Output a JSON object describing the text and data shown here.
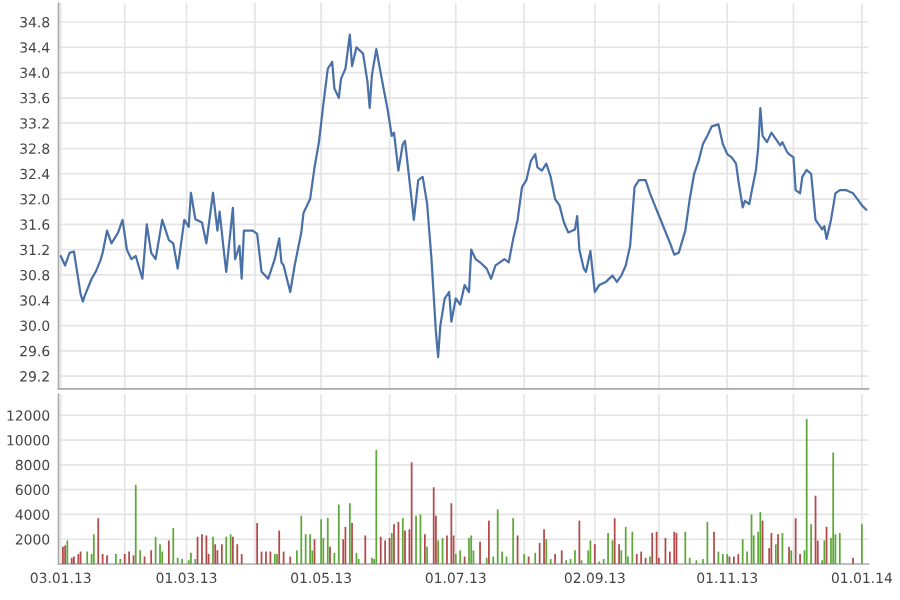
{
  "chart_data": [
    {
      "type": "line",
      "grid": true,
      "tick_labels": "y",
      "marker": "none",
      "line_style": "solid",
      "xlim": [
        "2013-01-02",
        "2014-01-04"
      ],
      "ylim": [
        29.0,
        35.1
      ],
      "yticks": [
        29.2,
        29.6,
        {
          "value": 30,
          "label": "30.0"
        },
        30.4,
        30.8,
        31.2,
        31.6,
        {
          "value": 32,
          "label": "32.0"
        },
        32.4,
        32.8,
        33.2,
        33.6,
        {
          "value": 34,
          "label": "34.0"
        },
        34.4,
        34.8
      ],
      "xticks": [
        {
          "value": "2013-01-03",
          "label": null
        },
        {
          "value": "2013-02-01",
          "label": null
        },
        {
          "value": "2013-03-01",
          "label": null
        },
        {
          "value": "2013-04-01",
          "label": null
        },
        {
          "value": "2013-05-01",
          "label": null
        },
        {
          "value": "2013-06-01",
          "label": null
        },
        {
          "value": "2013-07-01",
          "label": null
        },
        {
          "value": "2013-08-01",
          "label": null
        },
        {
          "value": "2013-09-02",
          "label": null
        },
        {
          "value": "2013-10-01",
          "label": null
        },
        {
          "value": "2013-11-01",
          "label": null
        },
        {
          "value": "2013-12-01",
          "label": null
        },
        {
          "value": "2014-01-01",
          "label": null
        }
      ],
      "x": [
        "2013-01-03",
        "2013-01-05",
        "2013-01-07",
        "2013-01-09",
        "2013-01-12",
        "2013-01-13",
        "2013-01-14",
        "2013-01-17",
        "2013-01-19",
        "2013-01-21",
        "2013-01-22",
        "2013-01-24",
        "2013-01-26",
        "2013-01-29",
        "2013-01-31",
        "2013-02-02",
        "2013-02-04",
        "2013-02-06",
        "2013-02-09",
        "2013-02-11",
        "2013-02-13",
        "2013-02-15",
        "2013-02-18",
        "2013-02-21",
        "2013-02-23",
        "2013-02-25",
        "2013-02-28",
        "2013-03-02",
        "2013-03-03",
        "2013-03-05",
        "2013-03-08",
        "2013-03-10",
        "2013-03-13",
        "2013-03-15",
        "2013-03-16",
        "2013-03-18",
        "2013-03-19",
        "2013-03-22",
        "2013-03-23",
        "2013-03-25",
        "2013-03-26",
        "2013-03-27",
        "2013-03-31",
        "2013-04-02",
        "2013-04-04",
        "2013-04-07",
        "2013-04-10",
        "2013-04-12",
        "2013-04-13",
        "2013-04-14",
        "2013-04-17",
        "2013-04-19",
        "2013-04-22",
        "2013-04-23",
        "2013-04-26",
        "2013-04-28",
        "2013-04-30",
        "2013-05-02",
        "2013-05-04",
        "2013-05-06",
        "2013-05-07",
        "2013-05-09",
        "2013-05-10",
        "2013-05-12",
        "2013-05-14",
        "2013-05-15",
        "2013-05-17",
        "2013-05-20",
        "2013-05-22",
        "2013-05-23",
        "2013-05-24",
        "2013-05-26",
        "2013-05-29",
        "2013-05-31",
        "2013-06-02",
        "2013-06-03",
        "2013-06-05",
        "2013-06-07",
        "2013-06-08",
        "2013-06-10",
        "2013-06-12",
        "2013-06-14",
        "2013-06-16",
        "2013-06-18",
        "2013-06-20",
        "2013-06-22",
        "2013-06-23",
        "2013-06-24",
        "2013-06-26",
        "2013-06-28",
        "2013-06-29",
        "2013-07-01",
        "2013-07-03",
        "2013-07-05",
        "2013-07-07",
        "2013-07-08",
        "2013-07-10",
        "2013-07-12",
        "2013-07-15",
        "2013-07-17",
        "2013-07-19",
        "2013-07-21",
        "2013-07-23",
        "2013-07-25",
        "2013-07-27",
        "2013-07-29",
        "2013-07-31",
        "2013-08-02",
        "2013-08-04",
        "2013-08-06",
        "2013-08-07",
        "2013-08-09",
        "2013-08-11",
        "2013-08-13",
        "2013-08-15",
        "2013-08-17",
        "2013-08-19",
        "2013-08-21",
        "2013-08-24",
        "2013-08-25",
        "2013-08-26",
        "2013-08-28",
        "2013-08-29",
        "2013-08-31",
        "2013-09-02",
        "2013-09-04",
        "2013-09-07",
        "2013-09-10",
        "2013-09-12",
        "2013-09-14",
        "2013-09-16",
        "2013-09-18",
        "2013-09-20",
        "2013-09-22",
        "2013-09-25",
        "2013-09-27",
        "2013-09-30",
        "2013-10-03",
        "2013-10-06",
        "2013-10-08",
        "2013-10-10",
        "2013-10-13",
        "2013-10-15",
        "2013-10-17",
        "2013-10-19",
        "2013-10-21",
        "2013-10-23",
        "2013-10-25",
        "2013-10-28",
        "2013-10-30",
        "2013-11-01",
        "2013-11-03",
        "2013-11-05",
        "2013-11-06",
        "2013-11-08",
        "2013-11-09",
        "2013-11-11",
        "2013-11-12",
        "2013-11-14",
        "2013-11-15",
        "2013-11-16",
        "2013-11-17",
        "2013-11-19",
        "2013-11-21",
        "2013-11-24",
        "2013-11-25",
        "2013-11-26",
        "2013-11-28",
        "2013-11-29",
        "2013-12-01",
        "2013-12-02",
        "2013-12-04",
        "2013-12-05",
        "2013-12-07",
        "2013-12-09",
        "2013-12-11",
        "2013-12-14",
        "2013-12-15",
        "2013-12-16",
        "2013-12-18",
        "2013-12-20",
        "2013-12-22",
        "2013-12-25",
        "2013-12-28",
        "2013-12-30",
        "2014-01-01",
        "2014-01-03"
      ],
      "series": [
        {
          "color": "#4a70a8",
          "values": [
            31.1,
            30.95,
            31.15,
            31.17,
            30.5,
            30.38,
            30.48,
            30.74,
            30.86,
            31.03,
            31.15,
            31.5,
            31.3,
            31.47,
            31.67,
            31.2,
            31.05,
            31.1,
            30.74,
            31.6,
            31.15,
            31.05,
            31.67,
            31.35,
            31.3,
            30.9,
            31.67,
            31.56,
            32.1,
            31.68,
            31.63,
            31.3,
            32.1,
            31.5,
            31.8,
            31.15,
            30.85,
            31.86,
            31.05,
            31.26,
            30.74,
            31.5,
            31.5,
            31.45,
            30.85,
            30.74,
            31.05,
            31.38,
            31.0,
            30.95,
            30.53,
            30.95,
            31.47,
            31.78,
            32.0,
            32.5,
            32.9,
            33.5,
            34.06,
            34.17,
            33.75,
            33.6,
            33.9,
            34.06,
            34.6,
            34.1,
            34.4,
            34.3,
            33.85,
            33.44,
            33.96,
            34.37,
            33.8,
            33.44,
            33.0,
            33.05,
            32.45,
            32.87,
            32.92,
            32.3,
            31.67,
            32.3,
            32.35,
            31.93,
            31.05,
            29.9,
            29.5,
            30.0,
            30.43,
            30.53,
            30.06,
            30.43,
            30.33,
            30.64,
            30.53,
            31.2,
            31.05,
            31.0,
            30.9,
            30.74,
            30.95,
            31.0,
            31.05,
            31.0,
            31.37,
            31.67,
            32.19,
            32.3,
            32.6,
            32.71,
            32.5,
            32.45,
            32.56,
            32.35,
            32.0,
            31.9,
            31.63,
            31.47,
            31.52,
            31.73,
            31.2,
            30.9,
            30.85,
            31.18,
            30.53,
            30.64,
            30.69,
            30.79,
            30.69,
            30.79,
            30.95,
            31.26,
            32.19,
            32.3,
            32.3,
            32.09,
            31.83,
            31.57,
            31.31,
            31.12,
            31.15,
            31.5,
            32.0,
            32.4,
            32.6,
            32.87,
            33.0,
            33.15,
            33.18,
            32.87,
            32.71,
            32.66,
            32.56,
            32.3,
            31.87,
            31.97,
            31.92,
            32.11,
            32.46,
            32.8,
            33.44,
            33.0,
            32.9,
            33.05,
            32.9,
            32.85,
            32.9,
            32.75,
            32.71,
            32.66,
            32.14,
            32.09,
            32.35,
            32.46,
            32.4,
            31.67,
            31.52,
            31.57,
            31.37,
            31.67,
            32.09,
            32.14,
            32.14,
            32.09,
            32.0,
            31.9,
            31.83
          ]
        }
      ]
    },
    {
      "type": "bar",
      "grid": true,
      "xlim": [
        "2013-01-02",
        "2014-01-04"
      ],
      "ylim": [
        0,
        13700
      ],
      "yticks": [
        2000,
        4000,
        6000,
        8000,
        10000,
        12000
      ],
      "xticks": [
        {
          "value": "2013-01-03",
          "label": "03.01.13"
        },
        {
          "value": "2013-02-01",
          "label": null
        },
        {
          "value": "2013-03-01",
          "label": "01.03.13"
        },
        {
          "value": "2013-04-01",
          "label": null
        },
        {
          "value": "2013-05-01",
          "label": "01.05.13"
        },
        {
          "value": "2013-06-01",
          "label": null
        },
        {
          "value": "2013-07-01",
          "label": "01.07.13"
        },
        {
          "value": "2013-08-01",
          "label": null
        },
        {
          "value": "2013-09-02",
          "label": "02.09.13"
        },
        {
          "value": "2013-10-01",
          "label": null
        },
        {
          "value": "2013-11-01",
          "label": "01.11.13"
        },
        {
          "value": "2013-12-01",
          "label": null
        },
        {
          "value": "2014-01-01",
          "label": "01.01.14"
        }
      ],
      "x": [
        "2013-01-04",
        "2013-01-05",
        "2013-01-06",
        "2013-01-08",
        "2013-01-09",
        "2013-01-11",
        "2013-01-12",
        "2013-01-15",
        "2013-01-17",
        "2013-01-18",
        "2013-01-20",
        "2013-01-22",
        "2013-01-24",
        "2013-01-28",
        "2013-01-30",
        "2013-02-01",
        "2013-02-03",
        "2013-02-05",
        "2013-02-06",
        "2013-02-08",
        "2013-02-10",
        "2013-02-13",
        "2013-02-15",
        "2013-02-17",
        "2013-02-18",
        "2013-02-21",
        "2013-02-23",
        "2013-02-25",
        "2013-02-27",
        "2013-03-02",
        "2013-03-03",
        "2013-03-05",
        "2013-03-06",
        "2013-03-08",
        "2013-03-10",
        "2013-03-11",
        "2013-03-13",
        "2013-03-14",
        "2013-03-15",
        "2013-03-17",
        "2013-03-19",
        "2013-03-21",
        "2013-03-22",
        "2013-03-24",
        "2013-03-26",
        "2013-04-02",
        "2013-04-04",
        "2013-04-06",
        "2013-04-08",
        "2013-04-10",
        "2013-04-11",
        "2013-04-12",
        "2013-04-14",
        "2013-04-17",
        "2013-04-20",
        "2013-04-22",
        "2013-04-24",
        "2013-04-26",
        "2013-04-27",
        "2013-04-28",
        "2013-05-01",
        "2013-05-02",
        "2013-05-04",
        "2013-05-05",
        "2013-05-07",
        "2013-05-09",
        "2013-05-11",
        "2013-05-12",
        "2013-05-14",
        "2013-05-15",
        "2013-05-17",
        "2013-05-18",
        "2013-05-21",
        "2013-05-24",
        "2013-05-25",
        "2013-05-26",
        "2013-05-28",
        "2013-05-30",
        "2013-06-01",
        "2013-06-02",
        "2013-06-03",
        "2013-06-05",
        "2013-06-07",
        "2013-06-08",
        "2013-06-10",
        "2013-06-11",
        "2013-06-13",
        "2013-06-15",
        "2013-06-17",
        "2013-06-18",
        "2013-06-21",
        "2013-06-22",
        "2013-06-23",
        "2013-06-25",
        "2013-06-27",
        "2013-06-29",
        "2013-06-30",
        "2013-07-01",
        "2013-07-03",
        "2013-07-05",
        "2013-07-07",
        "2013-07-08",
        "2013-07-09",
        "2013-07-12",
        "2013-07-15",
        "2013-07-16",
        "2013-07-18",
        "2013-07-20",
        "2013-07-22",
        "2013-07-24",
        "2013-07-27",
        "2013-07-29",
        "2013-08-01",
        "2013-08-03",
        "2013-08-06",
        "2013-08-08",
        "2013-08-10",
        "2013-08-11",
        "2013-08-13",
        "2013-08-15",
        "2013-08-18",
        "2013-08-20",
        "2013-08-22",
        "2013-08-24",
        "2013-08-26",
        "2013-08-27",
        "2013-08-30",
        "2013-08-31",
        "2013-09-02",
        "2013-09-04",
        "2013-09-06",
        "2013-09-08",
        "2013-09-10",
        "2013-09-11",
        "2013-09-13",
        "2013-09-14",
        "2013-09-16",
        "2013-09-17",
        "2013-09-19",
        "2013-09-21",
        "2013-09-23",
        "2013-09-25",
        "2013-09-27",
        "2013-09-28",
        "2013-09-30",
        "2013-10-01",
        "2013-10-04",
        "2013-10-06",
        "2013-10-08",
        "2013-10-09",
        "2013-10-13",
        "2013-10-15",
        "2013-10-18",
        "2013-10-21",
        "2013-10-23",
        "2013-10-26",
        "2013-10-28",
        "2013-10-30",
        "2013-11-01",
        "2013-11-02",
        "2013-11-04",
        "2013-11-06",
        "2013-11-08",
        "2013-11-10",
        "2013-11-12",
        "2013-11-13",
        "2013-11-15",
        "2013-11-16",
        "2013-11-17",
        "2013-11-20",
        "2013-11-21",
        "2013-11-23",
        "2013-11-24",
        "2013-11-26",
        "2013-11-29",
        "2013-11-30",
        "2013-12-02",
        "2013-12-04",
        "2013-12-06",
        "2013-12-07",
        "2013-12-09",
        "2013-12-11",
        "2013-12-12",
        "2013-12-14",
        "2013-12-15",
        "2013-12-16",
        "2013-12-18",
        "2013-12-19",
        "2013-12-20",
        "2013-12-22",
        "2013-12-28",
        "2014-01-01"
      ],
      "values": [
        1400,
        1500,
        1900,
        500,
        600,
        800,
        1000,
        1000,
        800,
        2400,
        3700,
        800,
        700,
        800,
        400,
        800,
        1000,
        700,
        6400,
        1100,
        600,
        1100,
        2200,
        1600,
        1000,
        1900,
        2900,
        500,
        400,
        300,
        900,
        400,
        2200,
        2400,
        2300,
        800,
        2200,
        1600,
        1100,
        1600,
        2200,
        2400,
        2200,
        1600,
        800,
        3300,
        1000,
        1000,
        1000,
        800,
        800,
        2700,
        1000,
        600,
        1100,
        3900,
        2400,
        2400,
        1100,
        2000,
        3600,
        2100,
        3700,
        1400,
        900,
        4800,
        2000,
        3000,
        4900,
        3300,
        900,
        400,
        2300,
        500,
        400,
        9200,
        2200,
        1900,
        2100,
        2500,
        3200,
        3400,
        3700,
        2700,
        2800,
        8200,
        3900,
        4000,
        2400,
        1400,
        6200,
        3900,
        1900,
        2100,
        2300,
        4900,
        2300,
        800,
        1100,
        600,
        2100,
        2300,
        1100,
        1800,
        500,
        3500,
        600,
        4400,
        1000,
        600,
        3700,
        2300,
        800,
        600,
        900,
        1700,
        2800,
        2000,
        400,
        800,
        1100,
        300,
        400,
        1100,
        3500,
        300,
        1100,
        1900,
        1600,
        200,
        400,
        2500,
        1900,
        3700,
        1600,
        1100,
        3000,
        600,
        2600,
        800,
        1000,
        500,
        600,
        2500,
        2600,
        500,
        2100,
        1000,
        2600,
        2500,
        2600,
        500,
        300,
        400,
        3400,
        2600,
        1000,
        800,
        800,
        600,
        600,
        800,
        2000,
        1000,
        4000,
        2300,
        2600,
        4200,
        3500,
        1300,
        2500,
        1600,
        2400,
        2500,
        1400,
        1100,
        3700,
        800,
        1100,
        11700,
        3200,
        5500,
        1900,
        300,
        1900,
        3000,
        2100,
        9000,
        2400,
        2500,
        500,
        3200
      ],
      "colors": [
        "#b34a4a",
        "#b34a4a",
        "#5ea83a",
        "#b34a4a",
        "#b34a4a",
        "#b34a4a",
        "#b34a4a",
        "#5ea83a",
        "#5ea83a",
        "#5ea83a",
        "#b34a4a",
        "#b34a4a",
        "#b34a4a",
        "#5ea83a",
        "#5ea83a",
        "#b34a4a",
        "#b34a4a",
        "#b34a4a",
        "#5ea83a",
        "#5ea83a",
        "#b34a4a",
        "#b34a4a",
        "#5ea83a",
        "#5ea83a",
        "#5ea83a",
        "#b34a4a",
        "#5ea83a",
        "#5ea83a",
        "#5ea83a",
        "#5ea83a",
        "#5ea83a",
        "#5ea83a",
        "#b34a4a",
        "#b34a4a",
        "#b34a4a",
        "#b34a4a",
        "#5ea83a",
        "#b34a4a",
        "#b34a4a",
        "#b34a4a",
        "#5ea83a",
        "#5ea83a",
        "#b34a4a",
        "#b34a4a",
        "#b34a4a",
        "#b34a4a",
        "#b34a4a",
        "#b34a4a",
        "#b34a4a",
        "#5ea83a",
        "#5ea83a",
        "#b34a4a",
        "#b34a4a",
        "#b34a4a",
        "#5ea83a",
        "#5ea83a",
        "#5ea83a",
        "#5ea83a",
        "#5ea83a",
        "#b34a4a",
        "#5ea83a",
        "#5ea83a",
        "#5ea83a",
        "#b34a4a",
        "#5ea83a",
        "#5ea83a",
        "#b34a4a",
        "#b34a4a",
        "#5ea83a",
        "#b34a4a",
        "#5ea83a",
        "#5ea83a",
        "#b34a4a",
        "#5ea83a",
        "#5ea83a",
        "#5ea83a",
        "#b34a4a",
        "#b34a4a",
        "#b34a4a",
        "#5ea83a",
        "#b34a4a",
        "#b34a4a",
        "#5ea83a",
        "#b34a4a",
        "#b34a4a",
        "#b34a4a",
        "#5ea83a",
        "#5ea83a",
        "#b34a4a",
        "#5ea83a",
        "#b34a4a",
        "#b34a4a",
        "#5ea83a",
        "#5ea83a",
        "#b34a4a",
        "#b34a4a",
        "#b34a4a",
        "#5ea83a",
        "#5ea83a",
        "#b34a4a",
        "#5ea83a",
        "#5ea83a",
        "#5ea83a",
        "#b34a4a",
        "#5ea83a",
        "#b34a4a",
        "#5ea83a",
        "#5ea83a",
        "#5ea83a",
        "#5ea83a",
        "#5ea83a",
        "#b34a4a",
        "#5ea83a",
        "#b34a4a",
        "#5ea83a",
        "#b34a4a",
        "#b34a4a",
        "#5ea83a",
        "#5ea83a",
        "#b34a4a",
        "#b34a4a",
        "#5ea83a",
        "#5ea83a",
        "#5ea83a",
        "#b34a4a",
        "#5ea83a",
        "#5ea83a",
        "#5ea83a",
        "#b34a4a",
        "#5ea83a",
        "#5ea83a",
        "#5ea83a",
        "#5ea83a",
        "#b34a4a",
        "#b34a4a",
        "#5ea83a",
        "#5ea83a",
        "#5ea83a",
        "#5ea83a",
        "#b34a4a",
        "#b34a4a",
        "#b34a4a",
        "#5ea83a",
        "#b34a4a",
        "#b34a4a",
        "#b34a4a",
        "#b34a4a",
        "#b34a4a",
        "#b34a4a",
        "#b34a4a",
        "#5ea83a",
        "#5ea83a",
        "#5ea83a",
        "#5ea83a",
        "#5ea83a",
        "#b34a4a",
        "#5ea83a",
        "#5ea83a",
        "#5ea83a",
        "#b34a4a",
        "#b34a4a",
        "#b34a4a",
        "#5ea83a",
        "#5ea83a",
        "#5ea83a",
        "#5ea83a",
        "#5ea83a",
        "#5ea83a",
        "#b34a4a",
        "#b34a4a",
        "#b34a4a",
        "#5ea83a",
        "#b34a4a",
        "#5ea83a",
        "#b34a4a",
        "#5ea83a",
        "#b34a4a",
        "#b34a4a",
        "#5ea83a",
        "#5ea83a",
        "#5ea83a",
        "#b34a4a",
        "#b34a4a",
        "#5ea83a",
        "#5ea83a",
        "#b34a4a",
        "#5ea83a",
        "#5ea83a",
        "#5ea83a",
        "#5ea83a",
        "#b34a4a",
        "#5ea83a"
      ]
    }
  ]
}
